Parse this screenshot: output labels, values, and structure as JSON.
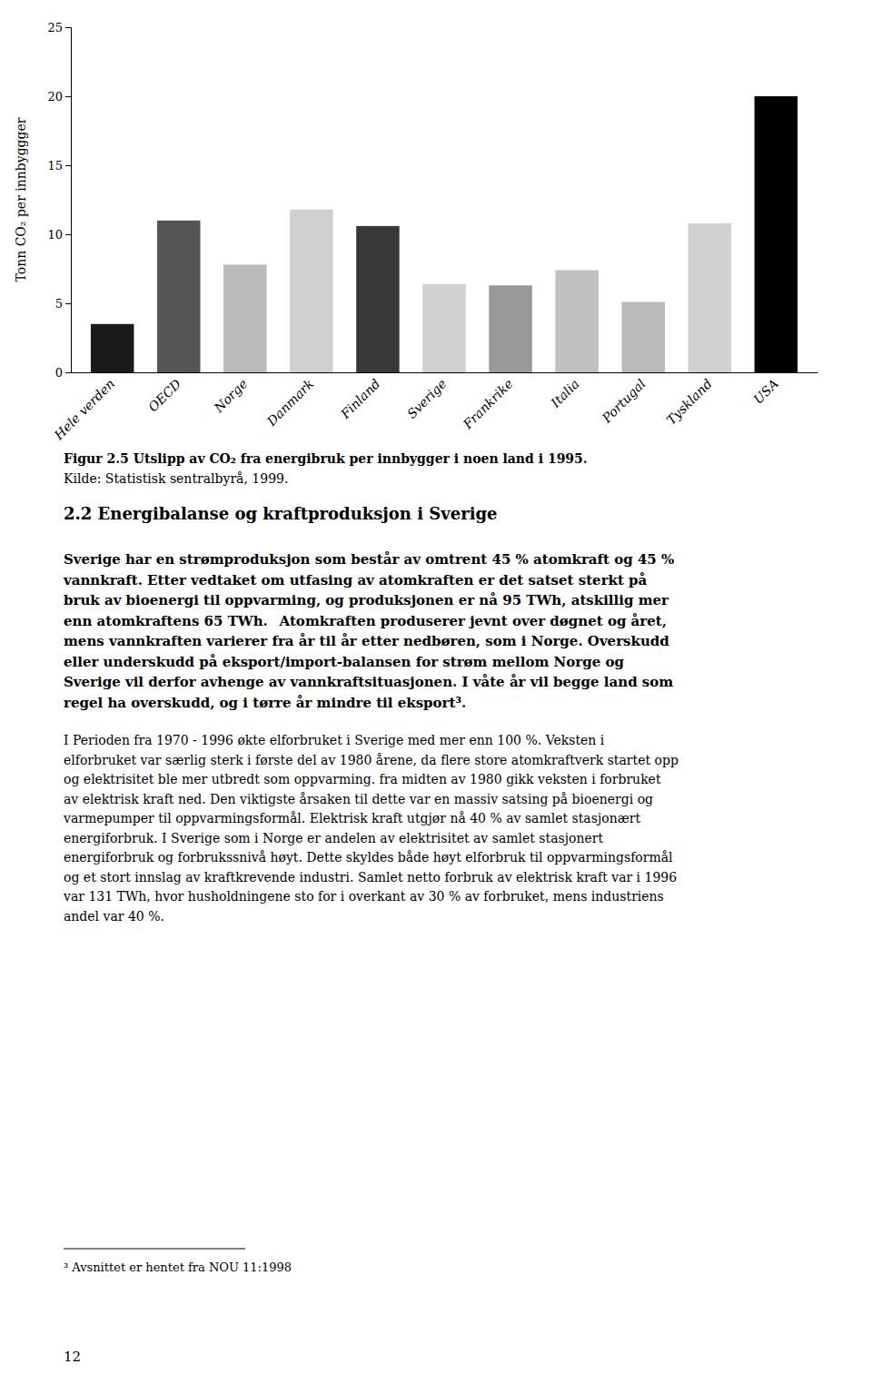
{
  "chart_data": {
    "type": "bar",
    "categories": [
      "Hele verden",
      "OECD",
      "Norge",
      "Danmark",
      "Finland",
      "Sverige",
      "Frankrike",
      "Italia",
      "Portugal",
      "Tyskland",
      "USA"
    ],
    "values": [
      3.5,
      11.0,
      7.8,
      11.8,
      10.6,
      6.4,
      6.3,
      7.4,
      5.1,
      10.8,
      20.0
    ],
    "colors": [
      "#1a1a1a",
      "#555555",
      "#bbbbbb",
      "#d0d0d0",
      "#383838",
      "#d0d0d0",
      "#999999",
      "#c0c0c0",
      "#bbbbbb",
      "#d0d0d0",
      "#000000"
    ],
    "ylabel": "Tonn CO₂ per innbyggger",
    "ylim": [
      0,
      25
    ],
    "yticks": [
      0,
      5,
      10,
      15,
      20,
      25
    ],
    "grid": false
  },
  "caption_bold": "Figur 2.5 Utslipp av CO₂ fra energibruk per innbygger i noen land i 1995.",
  "caption": "Kilde: Statistisk sentralbyrå, 1999.",
  "heading": "2.2 Energibalanse og kraftproduksjon i Sverige",
  "bold_paragraph": [
    "Sverige har en strømproduksjon som består av omtrent 45 % atomkraft og 45 %",
    "vannkraft. Etter vedtaket om utfasing av atomkraften er det satset sterkt på",
    "bruk av bioenergi til oppvarming, og produksjonen er nå 95 TWh, atskillig mer",
    "enn atomkraftens 65 TWh.  Atomkraften produserer jevnt over døgnet og året,",
    "mens vannkraften varierer fra år til år etter nedbøren, som i Norge. Overskudd",
    "eller underskudd på eksport/import-balansen for strøm mellom Norge og",
    "Sverige vil derfor avhenge av vannkraftsituasjonen. I våte år vil begge land som",
    "regel ha overskudd, og i tørre år mindre til eksport³."
  ],
  "paragraph": [
    "I Perioden fra 1970 - 1996 økte elforbruket i Sverige med mer enn 100 %. Veksten i",
    "elforbruket var særlig sterk i første del av 1980 årene, da flere store atomkraftverk startet opp",
    "og elektrisitet ble mer utbredt som oppvarming. fra midten av 1980 gikk veksten i forbruket",
    "av elektrisk kraft ned. Den viktigste årsaken til dette var en massiv satsing på bioenergi og",
    "varmepumper til oppvarmingsformål. Elektrisk kraft utgjør nå 40 % av samlet stasjonært",
    "energiforbruk. I Sverige som i Norge er andelen av elektrisitet av samlet stasjonert",
    "energiforbruk og forbrukssnivå høyt. Dette skyldes både høyt elforbruk til oppvarmingsformål",
    "og et stort innslag av kraftkrevende industri. Samlet netto forbruk av elektrisk kraft var i 1996",
    "var 131 TWh, hvor husholdningene sto for i overkant av 30 % av forbruket, mens industriens",
    "andel var 40 %."
  ],
  "footnote": "³ Avsnittet er hentet fra NOU 11:1998",
  "page_number": "12"
}
